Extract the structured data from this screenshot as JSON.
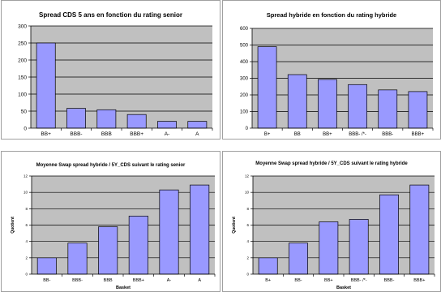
{
  "chart_data": [
    {
      "type": "bar",
      "title": "Spread CDS 5 ans en fonction du rating senior",
      "categories": [
        "BB+",
        "BBB-",
        "BBB",
        "BBB+",
        "A-",
        "A"
      ],
      "values": [
        250,
        58,
        54,
        40,
        20,
        20
      ],
      "ylim": [
        0,
        300
      ],
      "yticks": [
        0,
        50,
        100,
        150,
        200,
        250,
        300
      ],
      "xlabel": "",
      "ylabel": "",
      "grid": true,
      "legend": "none",
      "colors": {
        "bar": "#9999ff",
        "plot_bg": "#c0c0c0"
      }
    },
    {
      "type": "bar",
      "title": "Spread hybride en fonction du rating hybride",
      "categories": [
        "B+",
        "BB",
        "BB+",
        "BBB- /*-",
        "BBB-",
        "BBB+"
      ],
      "values": [
        490,
        322,
        293,
        262,
        230,
        220
      ],
      "ylim": [
        0,
        600
      ],
      "yticks": [
        0,
        100,
        200,
        300,
        400,
        500,
        600
      ],
      "xlabel": "",
      "ylabel": "",
      "grid": true,
      "legend": "none",
      "colors": {
        "bar": "#9999ff",
        "plot_bg": "#c0c0c0"
      }
    },
    {
      "type": "bar",
      "title": "Moyenne Swap spread hybride / 5Y_CDS suivant le rating senior",
      "categories": [
        "BB-",
        "BBB-",
        "BBB",
        "BBB+",
        "A-",
        "A"
      ],
      "values": [
        2.0,
        3.8,
        5.8,
        7.1,
        10.3,
        10.9
      ],
      "ylim": [
        0,
        12
      ],
      "yticks": [
        0,
        2,
        4,
        6,
        8,
        10,
        12
      ],
      "xlabel": "Basket",
      "ylabel": "Quotient",
      "grid": true,
      "legend": "none",
      "colors": {
        "bar": "#9999ff",
        "plot_bg": "#c0c0c0"
      }
    },
    {
      "type": "bar",
      "title": "Moyenne Swap spread hybride / 5Y_CDS suivant le rating hybride",
      "categories": [
        "B+",
        "BB-",
        "BB+",
        "BBB- /*-",
        "BBB-",
        "BBB+"
      ],
      "values": [
        2.0,
        3.8,
        6.4,
        6.7,
        9.7,
        10.9
      ],
      "ylim": [
        0,
        12
      ],
      "yticks": [
        0,
        2,
        4,
        6,
        8,
        10,
        12
      ],
      "xlabel": "Basket",
      "ylabel": "Quotient",
      "grid": true,
      "legend": "none",
      "colors": {
        "bar": "#9999ff",
        "plot_bg": "#c0c0c0"
      }
    }
  ]
}
